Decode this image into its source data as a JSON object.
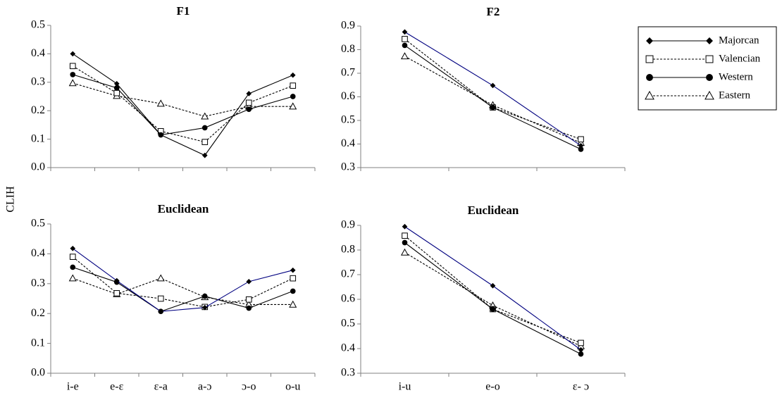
{
  "shared_ylabel": "CLIH",
  "colors": {
    "axis": "#808080",
    "ink": "#000000",
    "majorcan_highlight": "#000080"
  },
  "legend": {
    "placement": "right",
    "entries": [
      {
        "name": "Majorcan",
        "marker": "diamond",
        "line": "solid"
      },
      {
        "name": "Valencian",
        "marker": "open-square",
        "line": "dotted"
      },
      {
        "name": "Western",
        "marker": "filled-circle",
        "line": "solid"
      },
      {
        "name": "Eastern",
        "marker": "open-triangle",
        "line": "dotted"
      }
    ]
  },
  "chart_data": [
    {
      "type": "line",
      "title": "F1",
      "categories": [
        "i-e",
        "e-ɛ",
        "ɛ-a",
        "a-ɔ",
        "ɔ-o",
        "o-u"
      ],
      "show_category_labels": false,
      "ylim": [
        0,
        0.5
      ],
      "yticks": [
        "0.0",
        "0.1",
        "0.2",
        "0.3",
        "0.4",
        "0.5"
      ],
      "grid": false,
      "series": [
        {
          "name": "Majorcan",
          "values": [
            0.4,
            0.295,
            0.115,
            0.043,
            0.26,
            0.325
          ]
        },
        {
          "name": "Valencian",
          "values": [
            0.357,
            0.262,
            0.128,
            0.09,
            0.228,
            0.288
          ]
        },
        {
          "name": "Western",
          "values": [
            0.327,
            0.28,
            0.115,
            0.14,
            0.205,
            0.25
          ]
        },
        {
          "name": "Eastern",
          "values": [
            0.297,
            0.252,
            0.225,
            0.18,
            0.215,
            0.215
          ]
        }
      ]
    },
    {
      "type": "line",
      "title": "F2",
      "categories": [
        "i-u",
        "e-o",
        "ɛ- ɔ"
      ],
      "show_category_labels": false,
      "ylim": [
        0.3,
        0.9
      ],
      "yticks": [
        "0.3",
        "0.4",
        "0.5",
        "0.6",
        "0.7",
        "0.8",
        "0.9"
      ],
      "grid": false,
      "series": [
        {
          "name": "Majorcan",
          "values": [
            0.875,
            0.648,
            0.393
          ]
        },
        {
          "name": "Valencian",
          "values": [
            0.845,
            0.555,
            0.42
          ]
        },
        {
          "name": "Western",
          "values": [
            0.818,
            0.555,
            0.378
          ]
        },
        {
          "name": "Eastern",
          "values": [
            0.772,
            0.565,
            0.405
          ]
        }
      ]
    },
    {
      "type": "line",
      "title": "Euclidean",
      "categories": [
        "i-e",
        "e-ɛ",
        "ɛ-a",
        "a-ɔ",
        "ɔ-o",
        "o-u"
      ],
      "show_category_labels": true,
      "ylim": [
        0,
        0.5
      ],
      "yticks": [
        "0.0",
        "0.1",
        "0.2",
        "0.3",
        "0.4",
        "0.5"
      ],
      "grid": false,
      "series": [
        {
          "name": "Majorcan",
          "values": [
            0.418,
            0.31,
            0.207,
            0.22,
            0.307,
            0.345
          ]
        },
        {
          "name": "Valencian",
          "values": [
            0.39,
            0.268,
            0.25,
            0.222,
            0.247,
            0.318
          ]
        },
        {
          "name": "Western",
          "values": [
            0.355,
            0.305,
            0.207,
            0.258,
            0.218,
            0.275
          ]
        },
        {
          "name": "Eastern",
          "values": [
            0.318,
            0.265,
            0.318,
            0.255,
            0.23,
            0.23
          ]
        }
      ]
    },
    {
      "type": "line",
      "title": "Euclidean",
      "categories": [
        "i-u",
        "e-o",
        "ɛ- ɔ"
      ],
      "show_category_labels": true,
      "ylim": [
        0.3,
        0.9
      ],
      "yticks": [
        "0.3",
        "0.4",
        "0.5",
        "0.6",
        "0.7",
        "0.8",
        "0.9"
      ],
      "grid": false,
      "series": [
        {
          "name": "Majorcan",
          "values": [
            0.895,
            0.655,
            0.395
          ]
        },
        {
          "name": "Valencian",
          "values": [
            0.858,
            0.56,
            0.423
          ]
        },
        {
          "name": "Western",
          "values": [
            0.83,
            0.56,
            0.378
          ]
        },
        {
          "name": "Eastern",
          "values": [
            0.79,
            0.575,
            0.41
          ]
        }
      ]
    }
  ]
}
